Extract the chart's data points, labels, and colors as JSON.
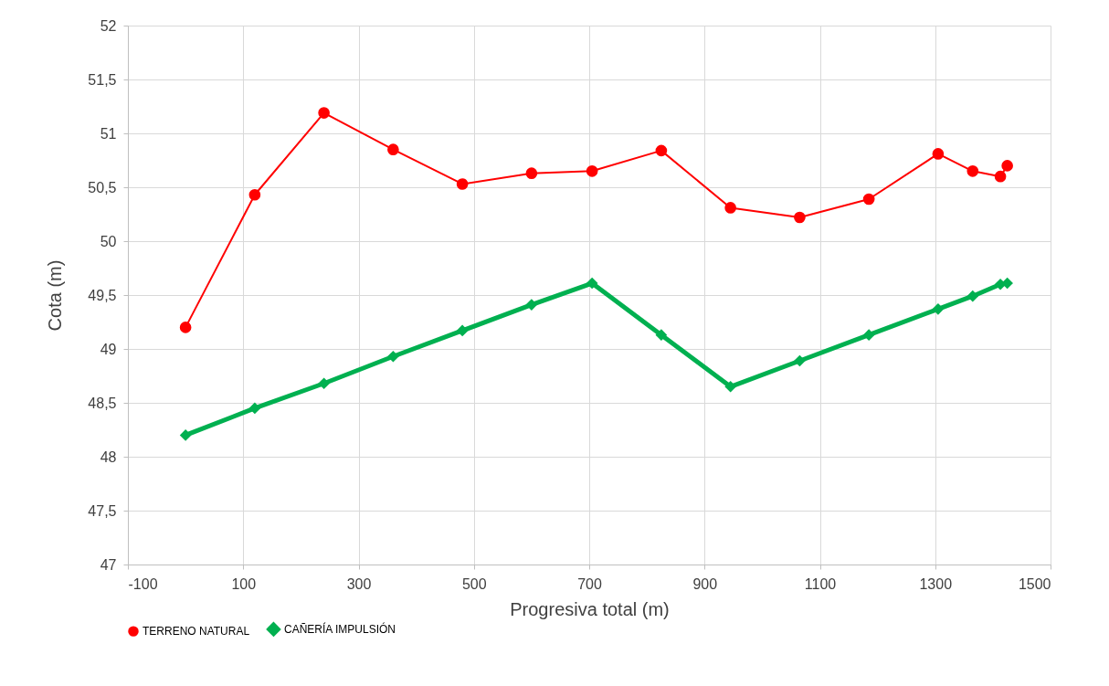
{
  "chart_data": {
    "type": "line",
    "xlabel": "Progresiva total (m)",
    "ylabel": "Cota (m)",
    "x": [
      0,
      120,
      240,
      360,
      480,
      600,
      705,
      825,
      945,
      1065,
      1185,
      1305,
      1365,
      1413,
      1425
    ],
    "series": [
      {
        "name": "TERRENO NATURAL",
        "color": "#ff0000",
        "marker": "circle",
        "values": [
          49.2,
          50.43,
          51.19,
          50.85,
          50.53,
          50.63,
          50.65,
          50.84,
          50.31,
          50.22,
          50.39,
          50.81,
          50.65,
          50.6,
          50.7
        ]
      },
      {
        "name": "CAÑERÍA IMPULSIÓN",
        "color": "#00b050",
        "marker": "diamond",
        "values": [
          48.2,
          48.45,
          48.68,
          48.93,
          49.17,
          49.41,
          49.61,
          49.13,
          48.65,
          48.89,
          49.13,
          49.37,
          49.49,
          49.6,
          49.61
        ]
      }
    ],
    "xlim": [
      -100,
      1500
    ],
    "xticks": [
      -100,
      100,
      300,
      500,
      700,
      900,
      1100,
      1300,
      1500
    ],
    "ylim": [
      47,
      52
    ],
    "yticks": [
      47,
      {
        "value": 47.5,
        "label": "47,5"
      },
      48,
      {
        "value": 48.5,
        "label": "48,5"
      },
      49,
      {
        "value": 49.5,
        "label": "49,5"
      },
      50,
      {
        "value": 50.5,
        "label": "50,5"
      },
      51,
      {
        "value": 51.5,
        "label": "51,5"
      },
      52
    ],
    "grid": true,
    "legend": "bottom"
  }
}
